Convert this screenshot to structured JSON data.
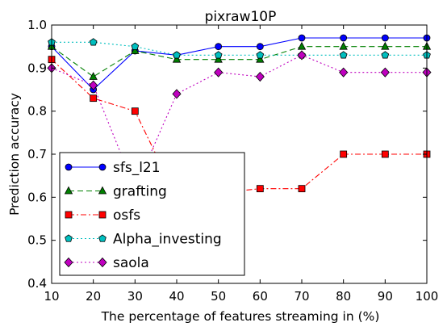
{
  "chart_data": {
    "type": "line",
    "title": "pixraw10P",
    "xlabel": "The percentage of features streaming in (%)",
    "ylabel": "Prediction accuracy",
    "xlim": [
      10,
      100
    ],
    "ylim": [
      0.4,
      1.0
    ],
    "x": [
      10,
      20,
      30,
      40,
      50,
      60,
      70,
      80,
      90,
      100
    ],
    "x_ticks": [
      "10",
      "20",
      "30",
      "40",
      "50",
      "60",
      "70",
      "80",
      "90",
      "100"
    ],
    "y_ticks": [
      "0.4",
      "0.5",
      "0.6",
      "0.7",
      "0.8",
      "0.9",
      "1.0"
    ],
    "grid": false,
    "legend_position": "lower-left",
    "series": [
      {
        "name": "sfs_l21",
        "color": "#0000ff",
        "marker": "circle",
        "linestyle": "solid",
        "values": [
          0.95,
          0.85,
          0.94,
          0.93,
          0.95,
          0.95,
          0.97,
          0.97,
          0.97,
          0.97
        ]
      },
      {
        "name": "grafting",
        "color": "#008000",
        "marker": "triangle",
        "linestyle": "dashed",
        "values": [
          0.95,
          0.88,
          0.94,
          0.92,
          0.92,
          0.92,
          0.95,
          0.95,
          0.95,
          0.95
        ]
      },
      {
        "name": "osfs",
        "color": "#ff0000",
        "marker": "square",
        "linestyle": "dashdot",
        "values": [
          0.92,
          0.83,
          0.8,
          0.6,
          0.61,
          0.62,
          0.62,
          0.7,
          0.7,
          0.7
        ]
      },
      {
        "name": "Alpha_investing",
        "color": "#00bfbf",
        "marker": "pentagon",
        "linestyle": "dotted",
        "values": [
          0.96,
          0.96,
          0.95,
          0.93,
          0.93,
          0.93,
          0.93,
          0.93,
          0.93,
          0.93
        ]
      },
      {
        "name": "saola",
        "color": "#bf00bf",
        "marker": "diamond",
        "linestyle": "dotted",
        "values": [
          0.9,
          0.86,
          0.62,
          0.84,
          0.89,
          0.88,
          0.93,
          0.89,
          0.89,
          0.89
        ]
      }
    ]
  }
}
